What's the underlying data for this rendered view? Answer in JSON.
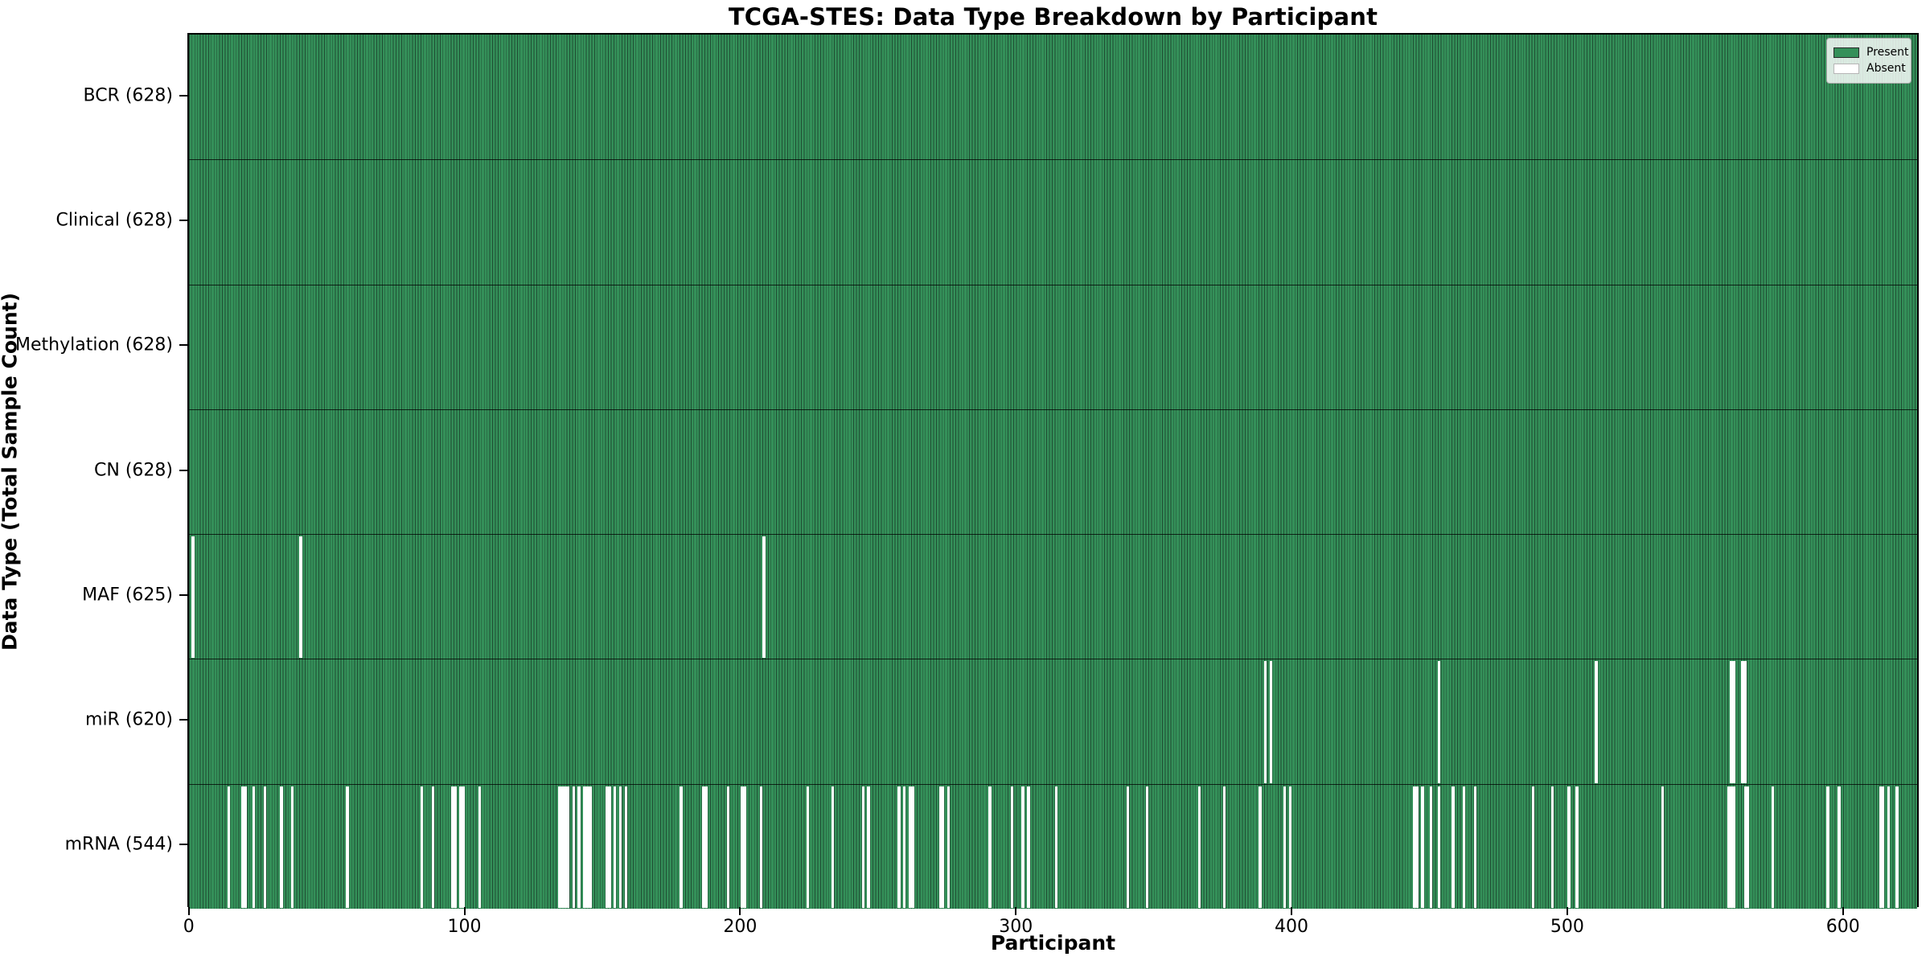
{
  "chart_data": {
    "type": "heatmap",
    "title": "TCGA-STES: Data Type Breakdown by Participant",
    "xlabel": "Participant",
    "ylabel": "Data Type (Total Sample Count)",
    "legend": {
      "position": "upper right",
      "entries": [
        {
          "label": "Present",
          "color": "#349059"
        },
        {
          "label": "Absent",
          "color": "#ffffff"
        }
      ]
    },
    "grid": false,
    "n_participants": 628,
    "x_ticks": [
      0,
      100,
      200,
      300,
      400,
      500,
      600
    ],
    "x_range": [
      0,
      628
    ],
    "rows": [
      {
        "label": "BCR",
        "total": 628,
        "absent_participants": []
      },
      {
        "label": "Clinical",
        "total": 628,
        "absent_participants": []
      },
      {
        "label": "Methylation",
        "total": 628,
        "absent_participants": []
      },
      {
        "label": "CN",
        "total": 628,
        "absent_participants": []
      },
      {
        "label": "MAF",
        "total": 625,
        "absent_participants": [
          1,
          40,
          208
        ]
      },
      {
        "label": "miR",
        "total": 620,
        "absent_participants": [
          390,
          392,
          453,
          510,
          559,
          560,
          563,
          564
        ]
      },
      {
        "label": "mRNA",
        "total": 544,
        "absent_participants": [
          14,
          19,
          20,
          23,
          27,
          33,
          37,
          57,
          84,
          88,
          95,
          96,
          98,
          99,
          105,
          134,
          135,
          136,
          137,
          139,
          141,
          143,
          144,
          145,
          151,
          152,
          154,
          156,
          158,
          178,
          186,
          187,
          195,
          200,
          201,
          207,
          224,
          233,
          244,
          246,
          257,
          259,
          261,
          262,
          272,
          273,
          275,
          290,
          298,
          302,
          304,
          314,
          340,
          347,
          366,
          375,
          388,
          397,
          399,
          444,
          445,
          447,
          450,
          453,
          458,
          462,
          466,
          487,
          494,
          500,
          503,
          534,
          558,
          559,
          560,
          564,
          565,
          574,
          594,
          598,
          613,
          614,
          616,
          619
        ]
      }
    ],
    "colors": {
      "present_fill": "#349059",
      "bar_edge": "#1f4d33",
      "absent_fill": "#ffffff",
      "spine": "#000000"
    }
  }
}
